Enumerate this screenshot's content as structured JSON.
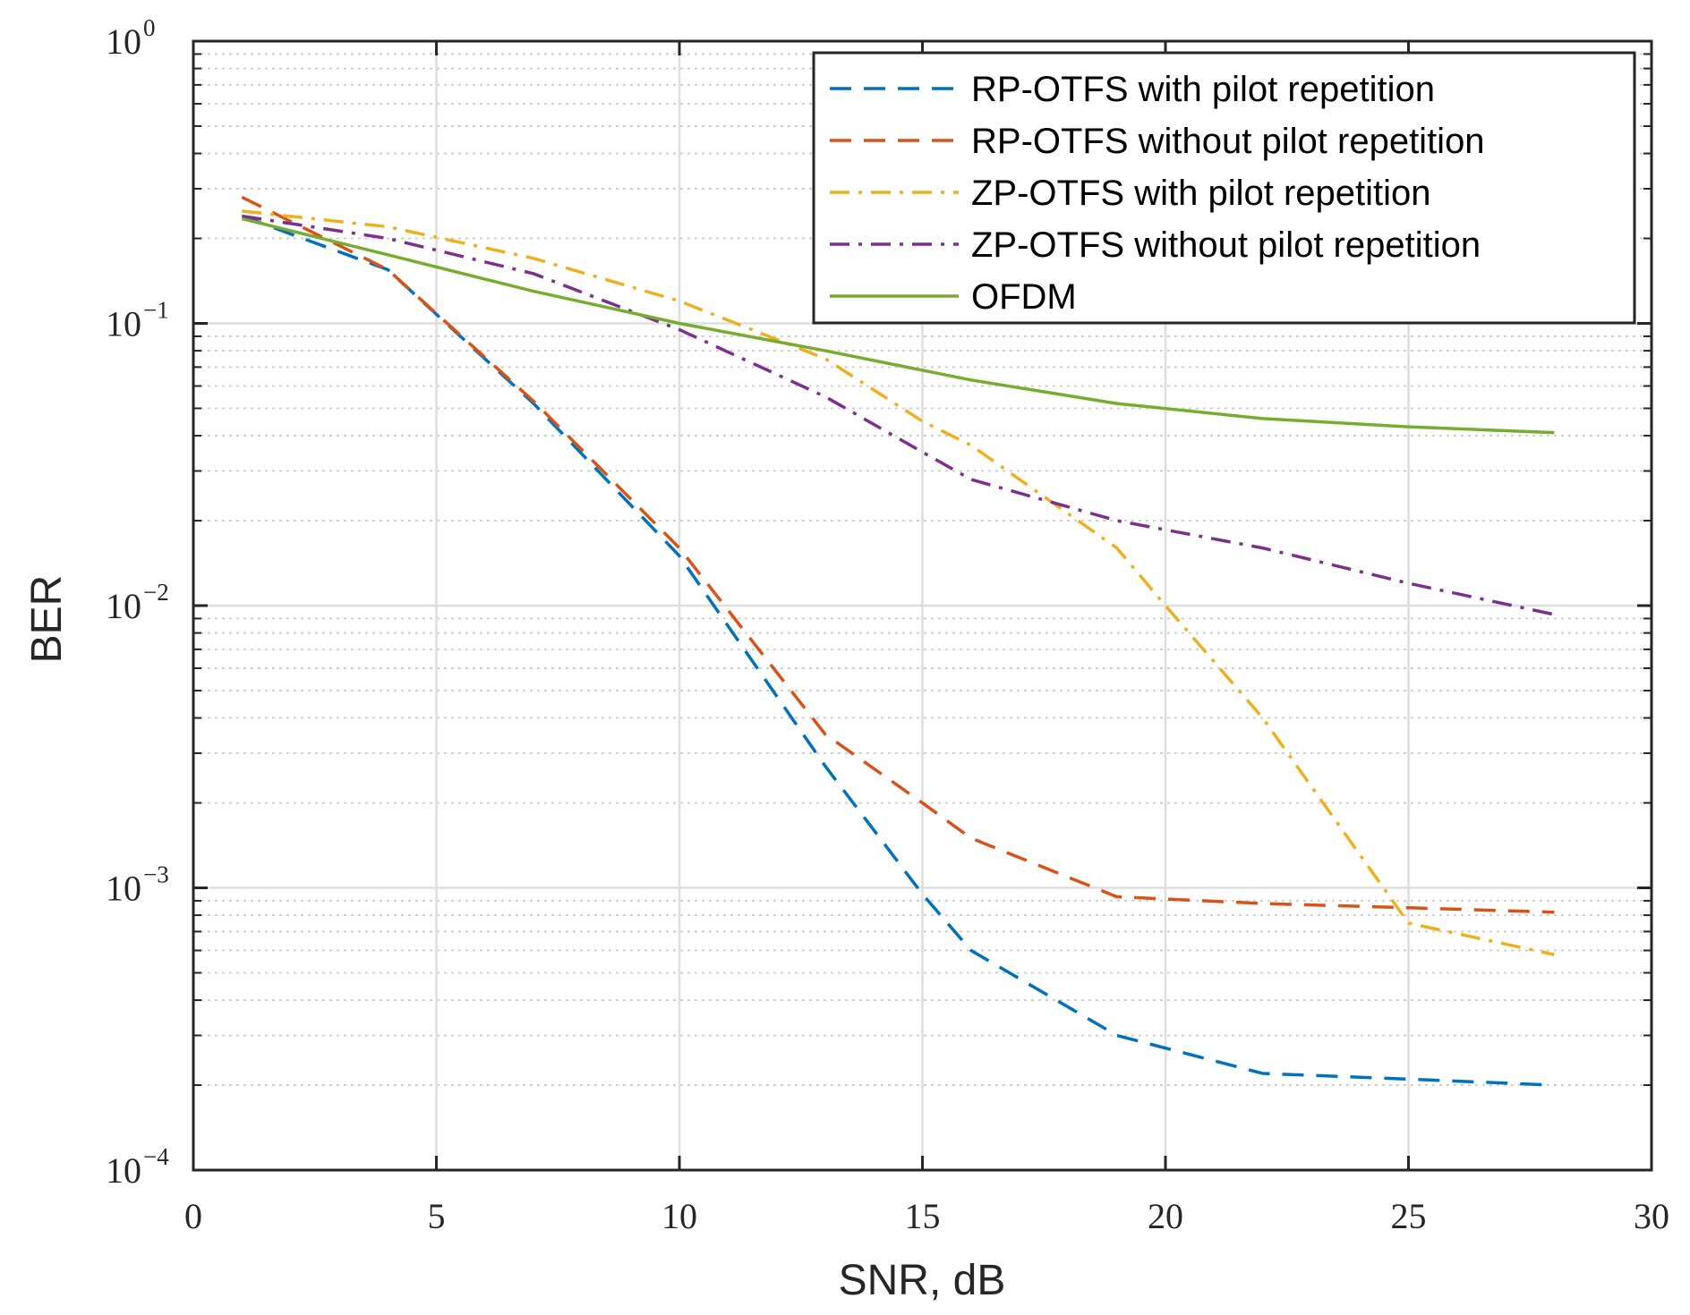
{
  "chart_data": {
    "type": "line",
    "title": "",
    "xlabel": "SNR, dB",
    "ylabel": "BER",
    "xlim": [
      0,
      30
    ],
    "ylim": [
      0.0001,
      1
    ],
    "yscale": "log",
    "grid": true,
    "legend_position": "top-right",
    "x_ticks": [
      "0",
      "5",
      "10",
      "15",
      "20",
      "25",
      "30"
    ],
    "y_ticks": [
      {
        "base": "10",
        "exp": "0"
      },
      {
        "base": "10",
        "exp": "−1"
      },
      {
        "base": "10",
        "exp": "−2"
      },
      {
        "base": "10",
        "exp": "−3"
      },
      {
        "base": "10",
        "exp": "−4"
      }
    ],
    "series": [
      {
        "name": "RP-OTFS with pilot repetition",
        "color": "#0072bd",
        "style": "dashed",
        "x": [
          1,
          4,
          7,
          10,
          13,
          15,
          16,
          19,
          22,
          25,
          28
        ],
        "y": [
          0.24,
          0.155,
          0.052,
          0.015,
          0.0027,
          0.00095,
          0.0006,
          0.0003,
          0.00022,
          0.00021,
          0.0002
        ]
      },
      {
        "name": "RP-OTFS without pilot repetition",
        "color": "#d95319",
        "style": "dashed",
        "x": [
          1,
          4,
          7,
          10,
          13,
          15,
          16,
          19,
          22,
          25,
          28
        ],
        "y": [
          0.28,
          0.155,
          0.053,
          0.016,
          0.0035,
          0.002,
          0.0015,
          0.00093,
          0.00088,
          0.00085,
          0.00082
        ]
      },
      {
        "name": "ZP-OTFS with pilot repetition",
        "color": "#edb120",
        "style": "dashdot",
        "x": [
          1,
          4,
          7,
          10,
          13,
          15,
          16,
          19,
          20,
          22,
          25,
          28
        ],
        "y": [
          0.25,
          0.22,
          0.17,
          0.12,
          0.075,
          0.045,
          0.037,
          0.016,
          0.01,
          0.004,
          0.00075,
          0.00058
        ]
      },
      {
        "name": "ZP-OTFS without pilot repetition",
        "color": "#7e2f8e",
        "style": "dashdot",
        "x": [
          1,
          4,
          7,
          10,
          13,
          15,
          16,
          19,
          22,
          25,
          28
        ],
        "y": [
          0.24,
          0.2,
          0.15,
          0.095,
          0.055,
          0.035,
          0.028,
          0.02,
          0.016,
          0.012,
          0.0093
        ]
      },
      {
        "name": "OFDM",
        "color": "#77ac30",
        "style": "solid",
        "x": [
          1,
          4,
          7,
          10,
          13,
          16,
          19,
          22,
          25,
          28
        ],
        "y": [
          0.235,
          0.175,
          0.13,
          0.1,
          0.08,
          0.063,
          0.052,
          0.046,
          0.043,
          0.041
        ]
      }
    ]
  }
}
